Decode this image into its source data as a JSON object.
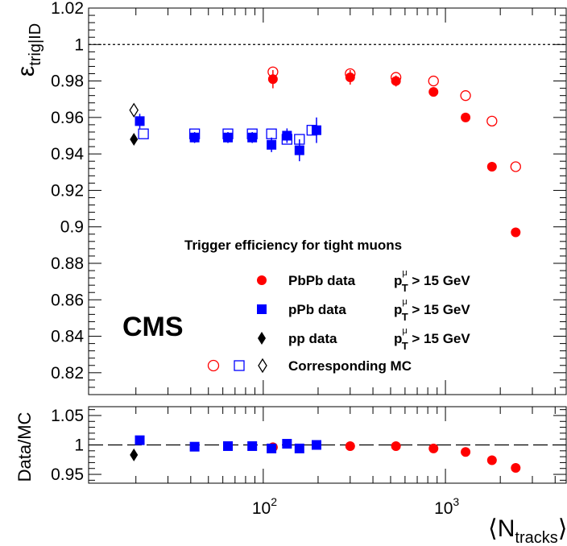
{
  "chart_data": {
    "type": "scatter",
    "x_scale": "log",
    "x_range": [
      11,
      4600
    ],
    "xlabel": {
      "main": "N",
      "sub": "tracks"
    },
    "x_tick_labels": [
      {
        "value": 100,
        "base": "10",
        "exp": "2"
      },
      {
        "value": 1000,
        "base": "10",
        "exp": "3"
      }
    ],
    "top_panel": {
      "ylabel": {
        "main": "ε",
        "sub": "trig|ID"
      },
      "ylim": [
        0.808,
        1.02
      ],
      "y_ticks": [
        "1.02",
        "1",
        "0.98",
        "0.96",
        "0.94",
        "0.92",
        "0.9",
        "0.88",
        "0.86",
        "0.84",
        "0.82"
      ],
      "y_tick_values": [
        1.02,
        1.0,
        0.98,
        0.96,
        0.94,
        0.92,
        0.9,
        0.88,
        0.86,
        0.84,
        0.82
      ],
      "reference_line": 1.0,
      "series": [
        {
          "name": "PbPb data",
          "marker": "filled-circle",
          "color": "#ff0000",
          "points": [
            {
              "x": 113,
              "y": 0.981,
              "err": 0.005
            },
            {
              "x": 300,
              "y": 0.982,
              "err": 0.004
            },
            {
              "x": 535,
              "y": 0.98,
              "err": 0.003
            },
            {
              "x": 860,
              "y": 0.974,
              "err": 0.002
            },
            {
              "x": 1290,
              "y": 0.96,
              "err": 0.002
            },
            {
              "x": 1800,
              "y": 0.933,
              "err": 0.002
            },
            {
              "x": 2430,
              "y": 0.897,
              "err": 0.002
            }
          ]
        },
        {
          "name": "PbPb MC",
          "marker": "open-circle",
          "color": "#ff0000",
          "points": [
            {
              "x": 113,
              "y": 0.985
            },
            {
              "x": 300,
              "y": 0.984
            },
            {
              "x": 535,
              "y": 0.982
            },
            {
              "x": 860,
              "y": 0.98
            },
            {
              "x": 1290,
              "y": 0.972
            },
            {
              "x": 1800,
              "y": 0.958
            },
            {
              "x": 2430,
              "y": 0.933
            }
          ]
        },
        {
          "name": "pPb data",
          "marker": "filled-square",
          "color": "#0000ff",
          "points": [
            {
              "x": 21,
              "y": 0.958,
              "err": 0.004
            },
            {
              "x": 42,
              "y": 0.949,
              "err": 0.003
            },
            {
              "x": 64,
              "y": 0.949,
              "err": 0.003
            },
            {
              "x": 87,
              "y": 0.949,
              "err": 0.003
            },
            {
              "x": 111,
              "y": 0.945,
              "err": 0.004
            },
            {
              "x": 135,
              "y": 0.95,
              "err": 0.004
            },
            {
              "x": 158,
              "y": 0.942,
              "err": 0.006
            },
            {
              "x": 196,
              "y": 0.953,
              "err": 0.007
            }
          ]
        },
        {
          "name": "pPb MC",
          "marker": "open-square",
          "color": "#0000ff",
          "points": [
            {
              "x": 22,
              "y": 0.951
            },
            {
              "x": 42,
              "y": 0.951
            },
            {
              "x": 64,
              "y": 0.951
            },
            {
              "x": 87,
              "y": 0.951
            },
            {
              "x": 111,
              "y": 0.951
            },
            {
              "x": 135,
              "y": 0.948
            },
            {
              "x": 158,
              "y": 0.948
            },
            {
              "x": 185,
              "y": 0.953
            }
          ]
        },
        {
          "name": "pp data",
          "marker": "filled-diamond",
          "color": "#000000",
          "points": [
            {
              "x": 19.5,
              "y": 0.948
            }
          ]
        },
        {
          "name": "pp MC",
          "marker": "open-diamond",
          "color": "#000000",
          "points": [
            {
              "x": 19.5,
              "y": 0.964
            }
          ]
        }
      ]
    },
    "ratio_panel": {
      "ylabel": "Data/MC",
      "ylim": [
        0.935,
        1.065
      ],
      "y_ticks": [
        "1.05",
        "1",
        "0.95"
      ],
      "y_tick_values": [
        1.05,
        1.0,
        0.95
      ],
      "reference_line": 1.0,
      "series": [
        {
          "name": "PbPb",
          "marker": "filled-circle",
          "color": "#ff0000",
          "points": [
            {
              "x": 113,
              "y": 0.996
            },
            {
              "x": 300,
              "y": 0.998
            },
            {
              "x": 535,
              "y": 0.998
            },
            {
              "x": 860,
              "y": 0.994
            },
            {
              "x": 1290,
              "y": 0.988
            },
            {
              "x": 1800,
              "y": 0.974
            },
            {
              "x": 2430,
              "y": 0.961
            }
          ]
        },
        {
          "name": "pPb",
          "marker": "filled-square",
          "color": "#0000ff",
          "points": [
            {
              "x": 21,
              "y": 1.008
            },
            {
              "x": 42,
              "y": 0.997
            },
            {
              "x": 64,
              "y": 0.998
            },
            {
              "x": 87,
              "y": 0.998
            },
            {
              "x": 111,
              "y": 0.994
            },
            {
              "x": 135,
              "y": 1.002
            },
            {
              "x": 158,
              "y": 0.994
            },
            {
              "x": 196,
              "y": 1.0
            }
          ]
        },
        {
          "name": "pp",
          "marker": "filled-diamond",
          "color": "#000000",
          "points": [
            {
              "x": 19.5,
              "y": 0.983
            }
          ]
        }
      ]
    },
    "legend": {
      "title": "Trigger efficiency for tight muons",
      "entries": [
        {
          "marker": "filled-circle",
          "color": "#ff0000",
          "label": "PbPb data",
          "cut": "> 15 GeV"
        },
        {
          "marker": "filled-square",
          "color": "#0000ff",
          "label": "pPb data",
          "cut": "> 15 GeV"
        },
        {
          "marker": "filled-diamond",
          "color": "#000000",
          "label": "pp data",
          "cut": "> 15 GeV"
        }
      ],
      "cut_symbol": {
        "main": "p",
        "sub": "T",
        "sup": "μ"
      },
      "mc_label": "Corresponding MC"
    },
    "experiment_label": "CMS"
  }
}
